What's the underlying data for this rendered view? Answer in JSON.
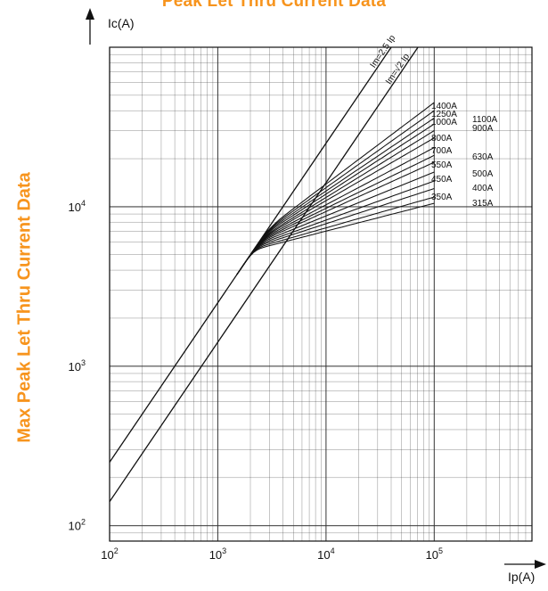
{
  "page": {
    "title": "Peak Let Thru Current Data",
    "side_title": "Max Peak Let Thru Current Data"
  },
  "colors": {
    "accent": "#f7941d",
    "ink": "#111111",
    "grid": "#333333"
  },
  "chart_data": {
    "type": "line",
    "title": "Peak Let Thru Current Data",
    "xlabel": "Ip(A)",
    "ylabel": "Ic(A)",
    "x_scale": "log",
    "y_scale": "log",
    "xlim": [
      100,
      800000
    ],
    "ylim": [
      80,
      100000
    ],
    "x_ticks": [
      {
        "value": 100,
        "base": "10",
        "exp": "2"
      },
      {
        "value": 1000,
        "base": "10",
        "exp": "3"
      },
      {
        "value": 10000,
        "base": "10",
        "exp": "4"
      },
      {
        "value": 100000,
        "base": "10",
        "exp": "5"
      }
    ],
    "y_ticks": [
      {
        "value": 100,
        "base": "10",
        "exp": "2"
      },
      {
        "value": 1000,
        "base": "10",
        "exp": "3"
      },
      {
        "value": 10000,
        "base": "10",
        "exp": "4"
      }
    ],
    "grid": true,
    "reference_lines": [
      {
        "label": "Im=2.5 Ip",
        "factor": 2.5
      },
      {
        "label": "Im=√2 Ip",
        "factor": 1.414
      }
    ],
    "series": [
      {
        "name": "1400A",
        "cutoff": 3000,
        "end": 45000,
        "label_side": "left"
      },
      {
        "name": "1250A",
        "cutoff": 2900,
        "end": 40000,
        "label_side": "left"
      },
      {
        "name": "1100A",
        "cutoff": 2800,
        "end": 36000,
        "label_side": "right"
      },
      {
        "name": "1000A",
        "cutoff": 2700,
        "end": 33000,
        "label_side": "left"
      },
      {
        "name": "900A",
        "cutoff": 2600,
        "end": 30000,
        "label_side": "right"
      },
      {
        "name": "800A",
        "cutoff": 2550,
        "end": 27000,
        "label_side": "left"
      },
      {
        "name": "700A",
        "cutoff": 2500,
        "end": 23500,
        "label_side": "left"
      },
      {
        "name": "630A",
        "cutoff": 2450,
        "end": 21000,
        "label_side": "right"
      },
      {
        "name": "550A",
        "cutoff": 2400,
        "end": 19000,
        "label_side": "left"
      },
      {
        "name": "500A",
        "cutoff": 2350,
        "end": 16500,
        "label_side": "right"
      },
      {
        "name": "450A",
        "cutoff": 2300,
        "end": 14500,
        "label_side": "left"
      },
      {
        "name": "400A",
        "cutoff": 2250,
        "end": 13000,
        "label_side": "right"
      },
      {
        "name": "350A",
        "cutoff": 2200,
        "end": 11500,
        "label_side": "left"
      },
      {
        "name": "315A",
        "cutoff": 2150,
        "end": 10500,
        "label_side": "right"
      }
    ]
  }
}
